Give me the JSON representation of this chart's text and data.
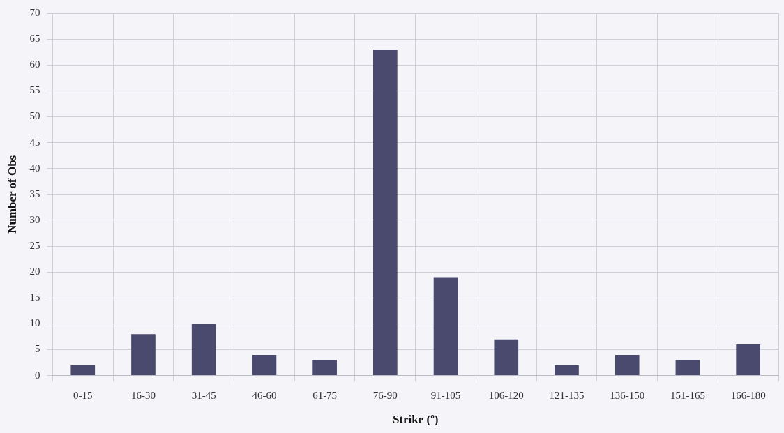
{
  "chart_data": {
    "type": "bar",
    "xlabel": "Strike (º)",
    "ylabel": "Number of Obs",
    "categories": [
      "0-15",
      "16-30",
      "31-45",
      "46-60",
      "61-75",
      "76-90",
      "91-105",
      "106-120",
      "121-135",
      "136-150",
      "151-165",
      "166-180"
    ],
    "values": [
      2,
      8,
      10,
      4,
      3,
      63,
      19,
      7,
      2,
      4,
      3,
      6
    ],
    "color": "#4a4a6e",
    "ylim": [
      0,
      70
    ],
    "yticks": [
      0,
      5,
      10,
      15,
      20,
      25,
      30,
      35,
      40,
      45,
      50,
      55,
      60,
      65,
      70
    ],
    "grid": true,
    "legend": false
  }
}
